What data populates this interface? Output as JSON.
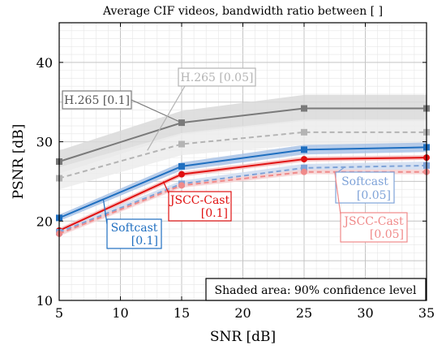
{
  "chart_data": {
    "type": "line",
    "title": "Average CIF videos, bandwidth ratio between [ ]",
    "xlabel": "SNR [dB]",
    "ylabel": "PSNR [dB]",
    "xlim": [
      5,
      35
    ],
    "ylim": [
      10,
      45
    ],
    "x_ticks": [
      5,
      10,
      15,
      20,
      25,
      30,
      35
    ],
    "y_ticks": [
      10,
      20,
      30,
      40
    ],
    "x_tick_labels": [
      "5",
      "10",
      "15",
      "20",
      "25",
      "30",
      "35"
    ],
    "y_tick_labels": [
      "10",
      "20",
      "30",
      "40"
    ],
    "grid": true,
    "x": [
      5,
      15,
      25,
      35
    ],
    "series": [
      {
        "key": "h265_01",
        "label": "H.265 [0.1]",
        "color": "#7a7a7a",
        "band": "#d9d9d9",
        "dashed": false,
        "marker": "square",
        "values": [
          27.5,
          32.4,
          34.2,
          34.2
        ],
        "ci_low": [
          26.0,
          30.9,
          32.6,
          32.6
        ],
        "ci_high": [
          28.9,
          33.9,
          35.9,
          35.9
        ]
      },
      {
        "key": "h265_005",
        "label": "H.265 [0.05]",
        "color": "#b4b4b4",
        "band": "#ececec",
        "dashed": true,
        "marker": "square",
        "values": [
          25.4,
          29.7,
          31.2,
          31.2
        ],
        "ci_low": [
          24.0,
          28.3,
          29.6,
          29.6
        ],
        "ci_high": [
          26.8,
          31.1,
          32.8,
          32.8
        ]
      },
      {
        "key": "softcast_01",
        "label": "Softcast [0.1]",
        "color": "#1f6fc0",
        "band": "#a9c3e6",
        "dashed": false,
        "marker": "square",
        "values": [
          20.4,
          26.9,
          29.0,
          29.3
        ],
        "ci_low": [
          20.0,
          26.4,
          28.4,
          28.7
        ],
        "ci_high": [
          20.8,
          27.4,
          29.6,
          29.9
        ]
      },
      {
        "key": "jscc_01",
        "label": "JSCC-Cast [0.1]",
        "color": "#e01010",
        "band": "#f4b7b7",
        "dashed": false,
        "marker": "circle",
        "values": [
          18.8,
          25.9,
          27.8,
          28.0
        ],
        "ci_low": [
          18.5,
          25.6,
          27.5,
          27.7
        ],
        "ci_high": [
          19.1,
          26.2,
          28.1,
          28.3
        ]
      },
      {
        "key": "softcast_005",
        "label": "Softcast [0.05]",
        "color": "#7fa3d8",
        "band": "#cfdcf0",
        "dashed": true,
        "marker": "square",
        "values": [
          18.6,
          24.7,
          26.7,
          27.0
        ],
        "ci_low": [
          18.2,
          24.3,
          26.2,
          26.5
        ],
        "ci_high": [
          19.0,
          25.1,
          27.2,
          27.5
        ]
      },
      {
        "key": "jscc_005",
        "label": "JSCC-Cast [0.05]",
        "color": "#f08a8a",
        "band": "#f7d2d2",
        "dashed": true,
        "marker": "circle",
        "values": [
          18.4,
          24.5,
          26.2,
          26.2
        ],
        "ci_low": [
          18.1,
          24.2,
          25.9,
          25.9
        ],
        "ci_high": [
          18.7,
          24.8,
          26.5,
          26.5
        ]
      }
    ],
    "annotations": {
      "h265_01": {
        "line1": "H.265 [0.1]"
      },
      "h265_005": {
        "line1": "H.265 [0.05]"
      },
      "softcast_01": {
        "line1": "Softcast",
        "line2": "[0.1]"
      },
      "jscc_01": {
        "line1": "JSCC-Cast",
        "line2": "[0.1]"
      },
      "softcast_005": {
        "line1": "Softcast",
        "line2": "[0.05]"
      },
      "jscc_005": {
        "line1": "JSCC-Cast",
        "line2": "[0.05]"
      }
    },
    "note": "Shaded area: 90% confidence level"
  }
}
